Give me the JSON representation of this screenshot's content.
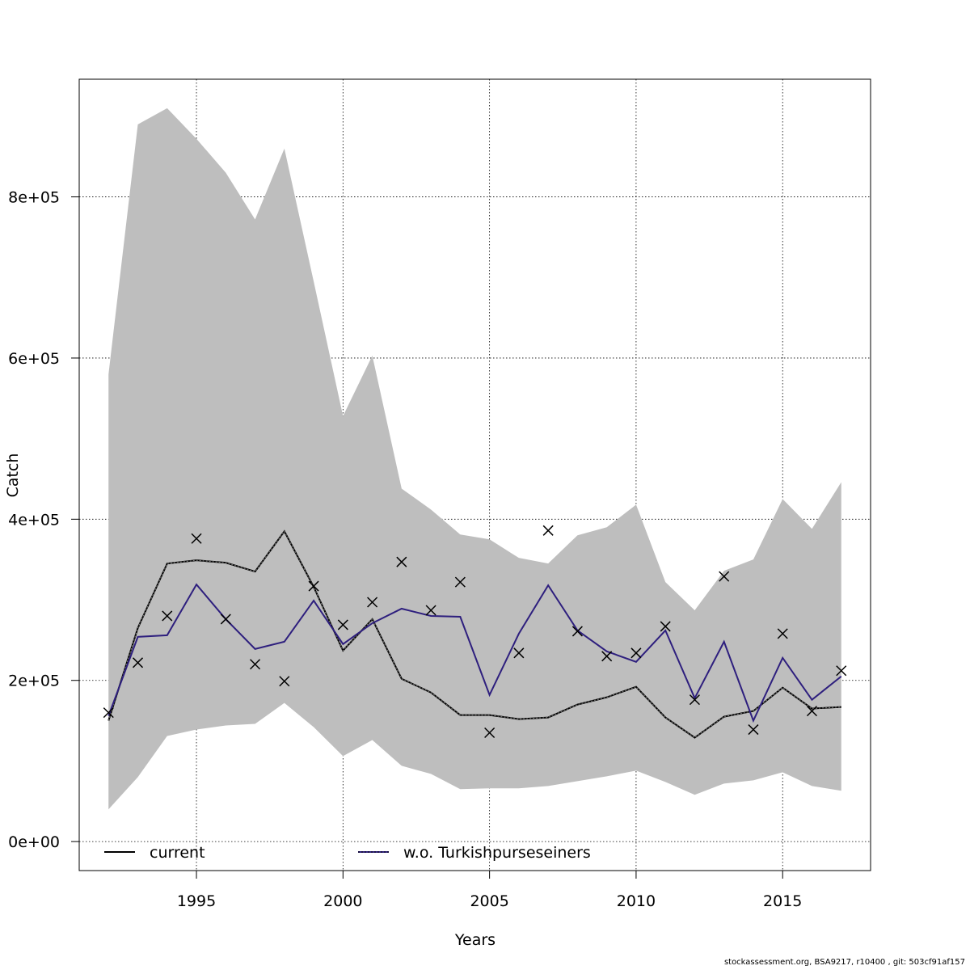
{
  "chart_data": {
    "type": "line",
    "xlabel": "Years",
    "ylabel": "Catch",
    "xlim": [
      1991,
      2018
    ],
    "ylim": [
      -36000,
      946000
    ],
    "x_ticks": [
      1995,
      2000,
      2005,
      2010,
      2015
    ],
    "x_tick_labels": [
      "1995",
      "2000",
      "2005",
      "2010",
      "2015"
    ],
    "y_ticks": [
      0,
      200000,
      400000,
      600000,
      800000
    ],
    "y_tick_labels": [
      "0e+00",
      "2e+05",
      "4e+05",
      "6e+05",
      "8e+05"
    ],
    "grid": true,
    "legend_position": "bottom",
    "years": [
      1992,
      1993,
      1994,
      1995,
      1996,
      1997,
      1998,
      1999,
      2000,
      2001,
      2002,
      2003,
      2004,
      2005,
      2006,
      2007,
      2008,
      2009,
      2010,
      2011,
      2012,
      2013,
      2014,
      2015,
      2016,
      2017
    ],
    "band": {
      "color": "#bebebe",
      "upper": [
        580000,
        890000,
        910000,
        872000,
        830000,
        772000,
        860000,
        695000,
        528000,
        603000,
        438000,
        412000,
        381000,
        375000,
        352000,
        345000,
        380000,
        390000,
        418000,
        322000,
        287000,
        336000,
        350000,
        425000,
        388000,
        446000
      ],
      "lower": [
        40000,
        80000,
        131000,
        139000,
        144000,
        146000,
        172000,
        142000,
        106000,
        126000,
        94000,
        84000,
        65000,
        66000,
        66000,
        69000,
        75000,
        81000,
        88000,
        74000,
        58000,
        72000,
        76000,
        86000,
        69000,
        63000
      ]
    },
    "series": [
      {
        "name": "current",
        "color": "#000000",
        "values": [
          150000,
          265000,
          345000,
          349000,
          346000,
          335000,
          385000,
          316000,
          237000,
          276000,
          202000,
          185000,
          157000,
          157000,
          152000,
          154000,
          170000,
          179000,
          192000,
          154000,
          129000,
          155000,
          162000,
          191000,
          165000,
          167000
        ]
      },
      {
        "name": "w.o. Turkishpurseseiners",
        "color": "#2e1f7e",
        "values": [
          156000,
          254000,
          256000,
          319000,
          276000,
          239000,
          248000,
          299000,
          245000,
          271000,
          289000,
          280000,
          279000,
          182000,
          258000,
          318000,
          262000,
          236000,
          223000,
          262000,
          178000,
          248000,
          150000,
          228000,
          176000,
          205000
        ]
      }
    ],
    "observed": {
      "marker": "x",
      "values": [
        160000,
        222000,
        280000,
        376000,
        276000,
        220000,
        199000,
        317000,
        269000,
        297000,
        347000,
        287000,
        322000,
        135000,
        234000,
        386000,
        261000,
        230000,
        234000,
        267000,
        176000,
        329000,
        139000,
        258000,
        162000,
        212000
      ]
    }
  },
  "footer": "stockassessment.org, BSA9217, r10400 , git: 503cf91af157"
}
